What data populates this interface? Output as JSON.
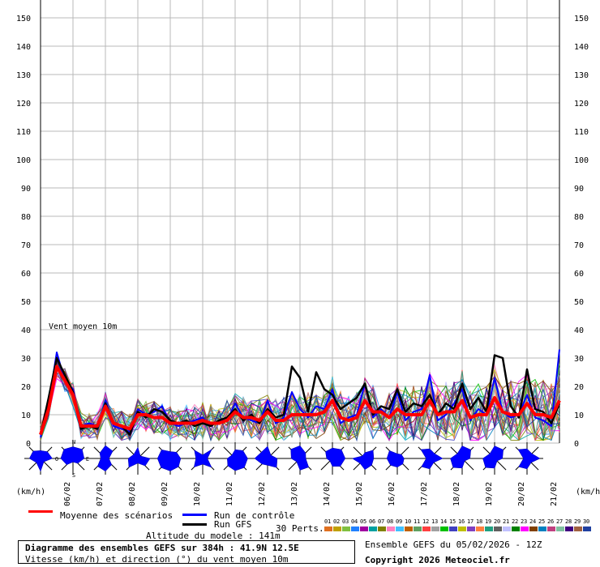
{
  "chart_data": {
    "type": "line",
    "title": "Diagramme des ensembles GEFS sur 384h : 41.9N 12.5E",
    "subtitle": "Vitesse (km/h) et direction (°) du vent moyen 10m",
    "annotation": "Vent moyen 10m",
    "ylabel_left": "(km/h)",
    "ylabel_right": "(km/h)",
    "ylim": [
      0,
      150
    ],
    "yticks": [
      0,
      10,
      20,
      30,
      40,
      50,
      60,
      70,
      80,
      90,
      100,
      110,
      120,
      130,
      140,
      150
    ],
    "grid": true,
    "date_labels": [
      "06/02",
      "07/02",
      "08/02",
      "09/02",
      "10/02",
      "11/02",
      "12/02",
      "13/02",
      "14/02",
      "15/02",
      "16/02",
      "17/02",
      "18/02",
      "19/02",
      "20/02",
      "21/02"
    ],
    "x_step_hours": 6,
    "series": [
      {
        "name": "Moyenne des scénarios",
        "color": "#ff0000",
        "values": [
          3,
          12,
          27,
          22,
          17,
          6,
          6,
          6,
          13,
          7,
          6,
          5,
          10,
          10,
          9,
          9,
          7,
          7,
          7,
          7,
          8,
          7,
          7,
          8,
          11,
          9,
          9,
          8,
          11,
          8,
          8,
          10,
          10,
          10,
          10,
          11,
          15,
          9,
          8,
          9,
          15,
          11,
          11,
          9,
          12,
          10,
          10,
          10,
          15,
          10,
          11,
          11,
          15,
          9,
          10,
          10,
          16,
          11,
          10,
          10,
          14,
          10,
          10,
          9,
          15
        ]
      },
      {
        "name": "Run de contrôle",
        "color": "#0000ff",
        "values": [
          2,
          14,
          32,
          22,
          19,
          6,
          7,
          6,
          15,
          6,
          5,
          4,
          12,
          10,
          11,
          13,
          7,
          6,
          7,
          8,
          9,
          6,
          8,
          8,
          14,
          9,
          8,
          7,
          15,
          7,
          9,
          18,
          12,
          9,
          13,
          12,
          19,
          7,
          9,
          10,
          21,
          9,
          12,
          9,
          18,
          8,
          11,
          12,
          24,
          8,
          10,
          14,
          19,
          8,
          12,
          10,
          23,
          11,
          9,
          10,
          17,
          9,
          8,
          6,
          33
        ]
      },
      {
        "name": "Run GFS",
        "color": "#000000",
        "values": [
          3,
          16,
          30,
          24,
          18,
          5,
          6,
          5,
          14,
          7,
          6,
          3,
          11,
          9,
          12,
          11,
          8,
          7,
          8,
          6,
          7,
          6,
          8,
          9,
          12,
          8,
          10,
          7,
          12,
          9,
          10,
          27,
          23,
          11,
          25,
          19,
          17,
          12,
          14,
          16,
          21,
          10,
          13,
          12,
          19,
          11,
          14,
          13,
          17,
          10,
          14,
          12,
          21,
          12,
          16,
          11,
          31,
          30,
          13,
          9,
          26,
          12,
          11,
          7,
          14
        ]
      }
    ],
    "wind_rose_note": "direction (°) du vent moyen 10m",
    "compass": {
      "n": "N",
      "s": "S",
      "e": "E",
      "w": "O"
    }
  },
  "legend": {
    "mean": "Moyenne des scénarios",
    "control": "Run de contrôle",
    "gfs": "Run GFS",
    "perts": "30 Perts.",
    "altitude": "Altitude du modele : 141m"
  },
  "perturbations": {
    "labels": [
      "01",
      "02",
      "03",
      "04",
      "05",
      "06",
      "07",
      "08",
      "09",
      "10",
      "11",
      "12",
      "13",
      "14",
      "15",
      "16",
      "17",
      "18",
      "19",
      "20",
      "21",
      "22",
      "23",
      "24",
      "25",
      "26",
      "27",
      "28",
      "29",
      "30"
    ],
    "colors": [
      "#e07020",
      "#c0a000",
      "#80c040",
      "#2080ff",
      "#a000a0",
      "#00a0a0",
      "#808000",
      "#ff80c0",
      "#40c0ff",
      "#c06000",
      "#60a060",
      "#ff4040",
      "#a0a0a0",
      "#00c000",
      "#4040c0",
      "#c0c000",
      "#8040c0",
      "#ff8040",
      "#20a080",
      "#606060",
      "#c0c0ff",
      "#008000",
      "#ff00ff",
      "#804000",
      "#0080c0",
      "#c04080",
      "#80c0a0",
      "#400080",
      "#a06040",
      "#2040a0"
    ]
  },
  "footer": {
    "title": "Diagramme des ensembles GEFS sur 384h : 41.9N 12.5E",
    "subtitle": "Vitesse (km/h) et direction (°) du vent moyen 10m",
    "run": "Ensemble GEFS du 05/02/2026 - 12Z",
    "copyright": "Copyright 2026 Meteociel.fr"
  }
}
